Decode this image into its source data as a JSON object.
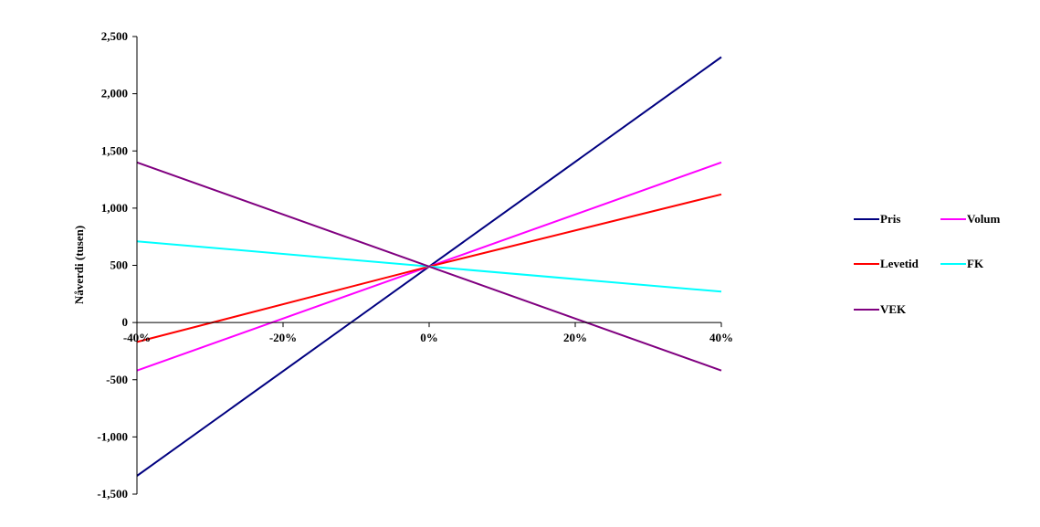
{
  "chart_data": {
    "type": "line",
    "title": "",
    "xlabel": "",
    "ylabel": "Nåverdi (tusen)",
    "x": [
      -40,
      0,
      40
    ],
    "x_tick_labels": [
      "-40%",
      "-20%",
      "0%",
      "20%",
      "40%"
    ],
    "x_ticks": [
      -40,
      -20,
      0,
      20,
      40
    ],
    "xlim": [
      -40,
      40
    ],
    "y_tick_labels": [
      "2,500",
      "2,000",
      "1,500",
      "1,000",
      "500",
      "0",
      "-500",
      "-1,000",
      "-1,500"
    ],
    "y_ticks": [
      2500,
      2000,
      1500,
      1000,
      500,
      0,
      -500,
      -1000,
      -1500
    ],
    "ylim": [
      -1500,
      2500
    ],
    "grid": false,
    "legend_position": "right",
    "series": [
      {
        "name": "Pris",
        "color": "#000080",
        "values": [
          -1340,
          490,
          2320
        ]
      },
      {
        "name": "Volum",
        "color": "#ff00ff",
        "values": [
          -420,
          490,
          1400
        ]
      },
      {
        "name": "Levetid",
        "color": "#ff0000",
        "values": [
          -170,
          490,
          1120
        ]
      },
      {
        "name": "FK",
        "color": "#00ffff",
        "values": [
          710,
          490,
          270
        ]
      },
      {
        "name": "VEK",
        "color": "#800080",
        "values": [
          1400,
          490,
          -420
        ]
      }
    ]
  }
}
